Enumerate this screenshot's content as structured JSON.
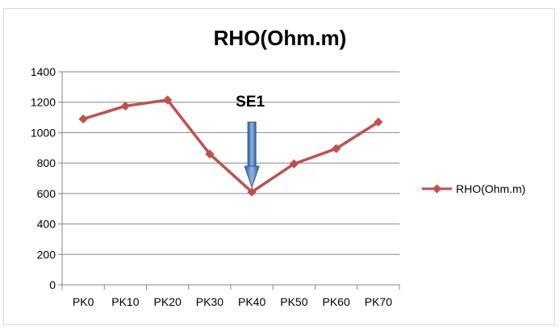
{
  "chart_data": {
    "type": "line",
    "title": "RHO(Ohm.m)",
    "xlabel": "",
    "ylabel": "",
    "categories": [
      "PK0",
      "PK10",
      "PK20",
      "PK30",
      "PK40",
      "PK50",
      "PK60",
      "PK70"
    ],
    "series": [
      {
        "name": "RHO(Ohm.m)",
        "values": [
          1090,
          1175,
          1215,
          860,
          610,
          795,
          895,
          1070
        ],
        "color": "#c0504d"
      }
    ],
    "ylim": [
      0,
      1400
    ],
    "yticks": [
      0,
      200,
      400,
      600,
      800,
      1000,
      1200,
      1400
    ],
    "grid": "horizontal",
    "legend": "right",
    "annotations": [
      {
        "text": "SE1",
        "category": "PK40",
        "arrow": "down",
        "color": "#4f81bd"
      }
    ]
  }
}
